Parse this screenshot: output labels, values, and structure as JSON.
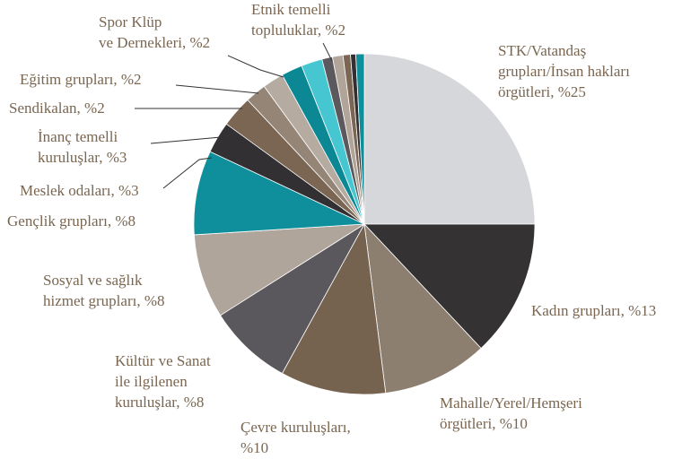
{
  "chart_data": {
    "type": "pie",
    "categories": [
      [
        "STK/Vatandaş",
        "grupları/İnsan hakları",
        "örgütleri, %25"
      ],
      [
        "Kadın grupları, %13"
      ],
      [
        "Mahalle/Yerel/Hemşeri",
        "örgütleri, %10"
      ],
      [
        "Çevre kuruluşları,",
        "%10"
      ],
      [
        "Kültür ve Sanat",
        "ile ilgilenen",
        "kuruluşlar, %8"
      ],
      [
        "Sosyal ve sağlık",
        "hizmet grupları, %8"
      ],
      [
        "Gençlik grupları, %8"
      ],
      [
        "Meslek odaları, %3"
      ],
      [
        "İnanç temelli",
        "kuruluşlar, %3"
      ],
      [
        "Sendikalan, %2"
      ],
      [
        "Eğitim grupları, %2"
      ],
      [
        "Spor Klüp",
        "ve Dernekleri, %2"
      ],
      [
        "Etnik temelli",
        "topluluklar, %2"
      ],
      null,
      null,
      null,
      null,
      null
    ],
    "values": [
      25,
      13,
      10,
      10,
      8,
      8,
      8,
      3,
      3,
      2,
      2,
      2,
      2,
      1,
      1,
      0.7,
      0.5,
      0.8
    ],
    "colors": [
      "#d5d7da",
      "#353234",
      "#8c7f70",
      "#76634f",
      "#5a585c",
      "#b0a59a",
      "#0e8f9b",
      "#333033",
      "#7a6652",
      "#948577",
      "#b5aba0",
      "#0b8894",
      "#45c6d0",
      "#5b595d",
      "#b0a598",
      "#7a6652",
      "#333033",
      "#0e8f9b"
    ]
  }
}
